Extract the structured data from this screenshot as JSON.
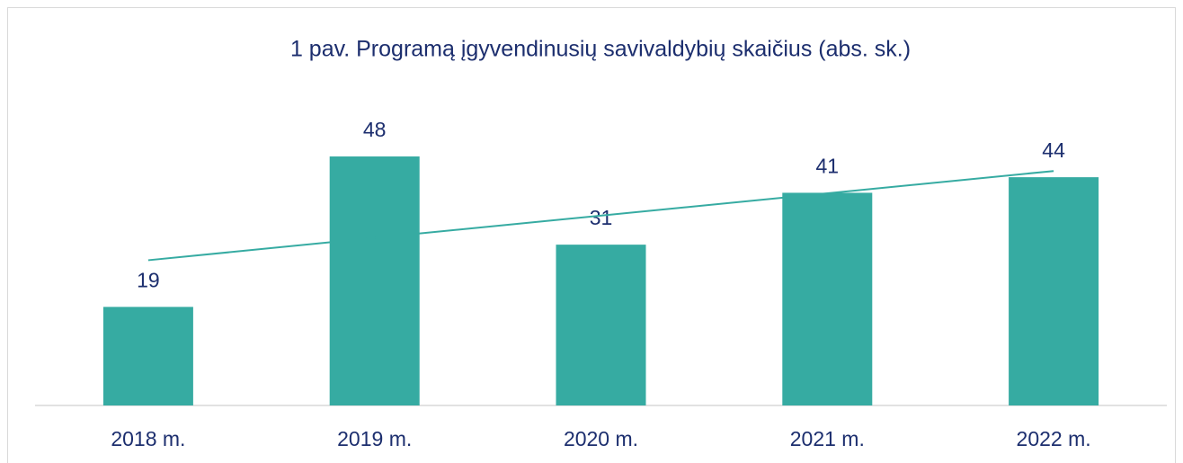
{
  "chart_data": {
    "type": "bar",
    "title": "1 pav. Programą įgyvendinusių savivaldybių skaičius (abs. sk.)",
    "categories": [
      "2018 m.",
      "2019 m.",
      "2020 m.",
      "2021 m.",
      "2022 m."
    ],
    "values": [
      19,
      48,
      31,
      41,
      44
    ],
    "color": "#36aba2",
    "ylim": [
      0,
      50
    ],
    "trendline": true
  }
}
